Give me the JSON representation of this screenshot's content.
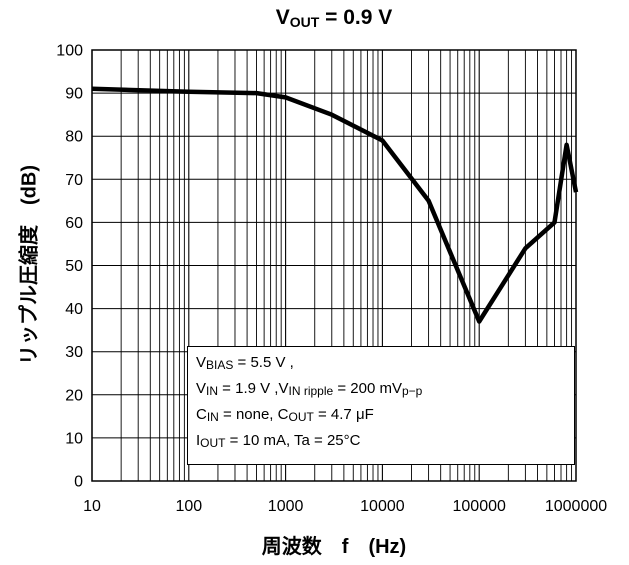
{
  "chart_data": {
    "type": "line",
    "title": {
      "main": "V",
      "sub": "OUT",
      "rest": " = 0.9 V"
    },
    "ylabel": "リップル圧縮度　(dB)",
    "xlabel": "周波数　f　(Hz)",
    "xscale": "log",
    "xlim": [
      10,
      1000000
    ],
    "ylim": [
      0,
      100
    ],
    "x_ticks": [
      "10",
      "100",
      "1000",
      "10000",
      "100000",
      "1000000"
    ],
    "y_ticks": [
      "0",
      "10",
      "20",
      "30",
      "40",
      "50",
      "60",
      "70",
      "80",
      "90",
      "100"
    ],
    "grid": true,
    "series": [
      {
        "x": [
          10,
          100,
          500,
          1000,
          3000,
          10000,
          30000,
          100000,
          300000,
          600000,
          800000,
          1000000
        ],
        "y": [
          91,
          90.3,
          90,
          89,
          85,
          79,
          65,
          37,
          54,
          60,
          78,
          67
        ]
      }
    ],
    "legend": {
      "line1": {
        "main": "V",
        "sub": "BIAS",
        "rest": " = 5.5 V ,"
      },
      "line2": {
        "main1": "V",
        "sub1": "IN",
        "mid": " = 1.9 V ,V",
        "sub2": "IN ripple",
        "rest": " = 200 mV",
        "sub3": "p−p"
      },
      "line3": {
        "main1": "C",
        "sub1": "IN",
        "mid": " = none, C",
        "sub2": "OUT",
        "rest": " = 4.7 μF"
      },
      "line4": {
        "main1": "I",
        "sub1": "OUT",
        "rest": " = 10 mA, Ta = 25°C"
      }
    },
    "legend_position": "bottom-left",
    "colors": {
      "line": "#000000",
      "grid": "#000000",
      "background": "#ffffff"
    }
  }
}
